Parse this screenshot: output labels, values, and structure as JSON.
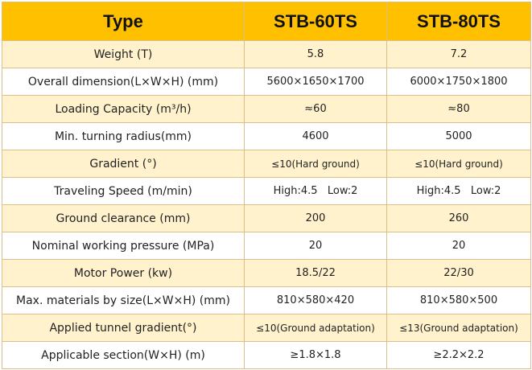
{
  "header": {
    "col_label": "Type",
    "col_a": "STB-60TS",
    "col_b": "STB-80TS"
  },
  "rows": [
    {
      "label": "Weight (T)",
      "a": "5.8",
      "b": "7.2"
    },
    {
      "label": "Overall dimension(L×W×H) (mm)",
      "a": "5600×1650×1700",
      "b": "6000×1750×1800"
    },
    {
      "label": "Loading Capacity (m³/h)",
      "a": "≈60",
      "b": "≈80"
    },
    {
      "label": "Min. turning radius(mm)",
      "a": "4600",
      "b": "5000"
    },
    {
      "label": "Gradient (°)",
      "a": "≤10(Hard ground)",
      "b": "≤10(Hard ground)"
    },
    {
      "label": "Traveling Speed (m/min)",
      "a": "High:4.5   Low:2",
      "b": "High:4.5   Low:2"
    },
    {
      "label": "Ground clearance (mm)",
      "a": "200",
      "b": "260"
    },
    {
      "label": "Nominal working pressure (MPa)",
      "a": "20",
      "b": "20"
    },
    {
      "label": "Motor Power (kw)",
      "a": "18.5/22",
      "b": "22/30"
    },
    {
      "label": "Max. materials by size(L×W×H) (mm)",
      "a": "810×580×420",
      "b": "810×580×500"
    },
    {
      "label": "Applied tunnel gradient(°)",
      "a": "≤10(Ground adaptation)",
      "b": "≤13(Ground adaptation)"
    },
    {
      "label": "Applicable section(W×H) (m)",
      "a": "≥1.8×1.8",
      "b": "≥2.2×2.2"
    }
  ],
  "colors": {
    "header_bg": "#ffc000",
    "band_bg": "#fff2cc",
    "border": "#d9c08a"
  }
}
